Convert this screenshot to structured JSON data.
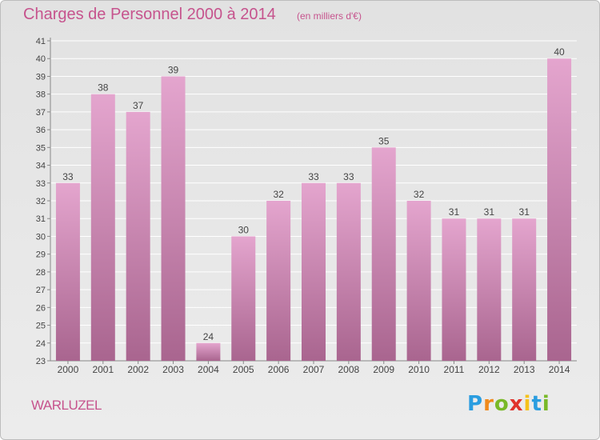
{
  "header": {
    "title": "Charges de Personnel 2000 à 2014",
    "unit": "(en milliers d'€)"
  },
  "footer": {
    "commune": "WARLUZEL",
    "logo_letters": [
      "P",
      "r",
      "o",
      "x",
      "i",
      "t",
      "i"
    ],
    "logo_colors": [
      "#2a9de0",
      "#f08a1c",
      "#79b928",
      "#e0322b",
      "#f5c21b",
      "#2a9de0",
      "#79b928"
    ]
  },
  "colors": {
    "bar_top": "#e4a5ce",
    "bar_bottom": "#a9658f",
    "title": "#c6538d",
    "grid": "#ffffff",
    "text": "#444444"
  },
  "chart_data": {
    "type": "bar",
    "title": "Charges de Personnel 2000 à 2014",
    "xlabel": "",
    "ylabel": "",
    "categories": [
      "2000",
      "2001",
      "2002",
      "2003",
      "2004",
      "2005",
      "2006",
      "2007",
      "2008",
      "2009",
      "2010",
      "2011",
      "2012",
      "2013",
      "2014"
    ],
    "values": [
      33,
      38,
      37,
      39,
      24,
      30,
      32,
      33,
      33,
      35,
      32,
      31,
      31,
      31,
      40
    ],
    "ylim": [
      23,
      41
    ],
    "yticks": [
      23,
      24,
      25,
      26,
      27,
      28,
      29,
      30,
      31,
      32,
      33,
      34,
      35,
      36,
      37,
      38,
      39,
      40,
      41
    ],
    "grid": true,
    "legend": "none"
  }
}
